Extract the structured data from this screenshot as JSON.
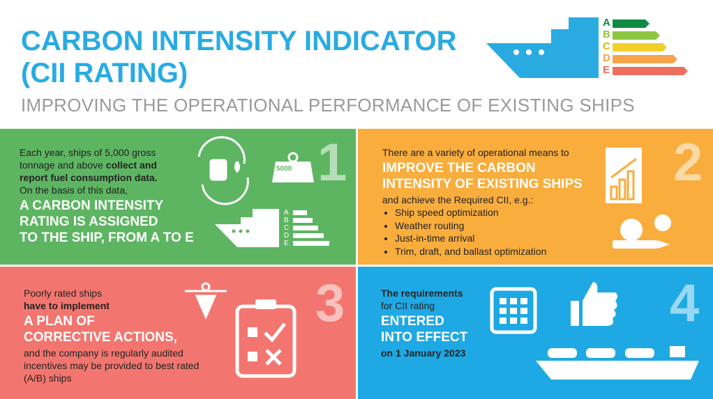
{
  "header": {
    "title": [
      "CARBON INTENSITY INDICATOR",
      "(CII RATING)"
    ],
    "subtitle": "IMPROVING THE OPERATIONAL PERFORMANCE OF EXISTING SHIPS",
    "rating_letters": [
      "A",
      "B",
      "C",
      "D",
      "E"
    ]
  },
  "panels": [
    {
      "number": "1",
      "intro": "Each year, ships of 5,000 gross tonnage and above",
      "intro_bold": "collect and report fuel consumption data.",
      "basis": "On the basis of this data,",
      "headline": [
        "A CARBON INTENSITY",
        "RATING IS ASSIGNED",
        "TO THE SHIP, FROM A TO E"
      ],
      "weight_label": "5000",
      "rating_letters": [
        "A",
        "B",
        "C",
        "D",
        "E"
      ]
    },
    {
      "number": "2",
      "intro": "There are a variety of operational means to",
      "headline": [
        "IMPROVE THE CARBON",
        "INTENSITY OF EXISTING SHIPS"
      ],
      "after": "and achieve the Required CII, e.g.:",
      "bullets": [
        "Ship speed optimization",
        "Weather routing",
        "Just-in-time arrival",
        "Trim, draft, and ballast optimization"
      ]
    },
    {
      "number": "3",
      "intro": "Poorly rated ships",
      "intro_bold": "have to implement",
      "headline": [
        "A PLAN OF",
        "CORRECTIVE ACTIONS,"
      ],
      "after": "and the company is regularly audited incentives may be provided to best rated (A/B) ships"
    },
    {
      "number": "4",
      "intro_bold": "The requirements",
      "intro": "for CII rating",
      "headline": [
        "ENTERED",
        "INTO EFFECT"
      ],
      "date": "on 1 January 2023"
    }
  ]
}
